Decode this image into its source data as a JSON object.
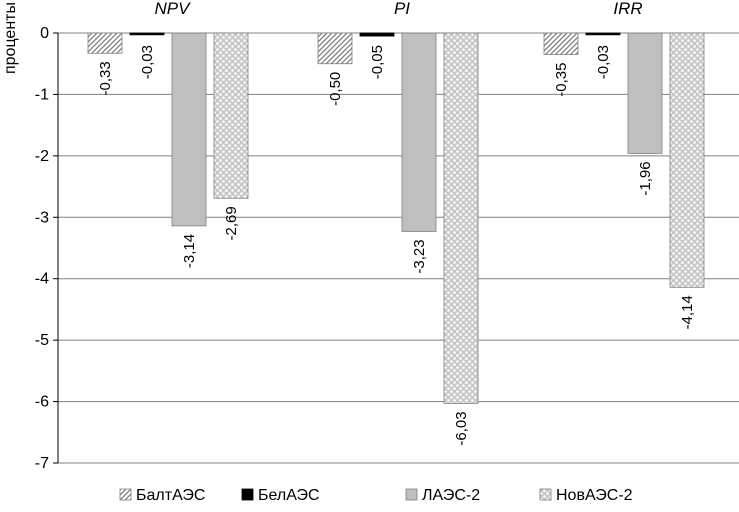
{
  "chart_data": {
    "type": "bar",
    "categories": [
      "NPV",
      "PI",
      "IRR"
    ],
    "series": [
      {
        "name": "БалтАЭС",
        "values": [
          -0.33,
          -0.5,
          -0.35
        ],
        "labels": [
          "-0,33",
          "-0,50",
          "-0,35"
        ],
        "fill": "hatch",
        "color": "#7f7f7f"
      },
      {
        "name": "БелАЭС",
        "values": [
          -0.03,
          -0.05,
          -0.03
        ],
        "labels": [
          "-0,03",
          "-0,05",
          "-0,03"
        ],
        "fill": "solid",
        "color": "#000000"
      },
      {
        "name": "ЛАЭС-2",
        "values": [
          -3.14,
          -3.23,
          -1.96
        ],
        "labels": [
          "-3,14",
          "-3,23",
          "-1,96"
        ],
        "fill": "solid",
        "color": "#bfbfbf"
      },
      {
        "name": "НовАЭС-2",
        "values": [
          -2.69,
          -6.03,
          -4.14
        ],
        "labels": [
          "-2,69",
          "-6,03",
          "-4,14"
        ],
        "fill": "dots",
        "color": "#d9d9d9"
      }
    ],
    "ylabel": "проценты",
    "ylim": [
      -7,
      0
    ],
    "yticks": [
      0,
      -1,
      -2,
      -3,
      -4,
      -5,
      -6,
      -7
    ],
    "ytick_labels": [
      "0",
      "-1",
      "-2",
      "-3",
      "-4",
      "-5",
      "-6",
      "-7"
    ],
    "grid": true,
    "legend_position": "bottom"
  }
}
